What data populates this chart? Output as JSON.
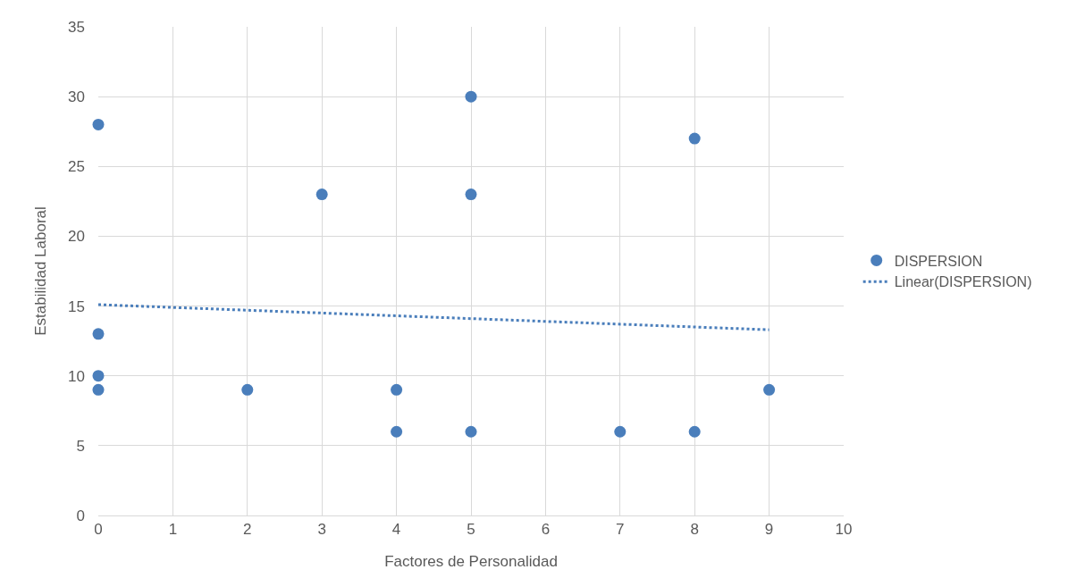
{
  "chart_data": {
    "type": "scatter",
    "xlabel": "Factores de Personalidad",
    "ylabel": "Estabilidad Laboral",
    "series": [
      {
        "name": "DISPERSION",
        "color": "#4a7ebb",
        "marker": "circle",
        "x": [
          0,
          0,
          0,
          0,
          2,
          3,
          4,
          4,
          5,
          5,
          5,
          7,
          8,
          8,
          9
        ],
        "values": [
          28,
          13,
          10,
          9,
          9,
          23,
          9,
          6,
          30,
          23,
          6,
          6,
          27,
          6,
          9
        ]
      },
      {
        "name": "Linear(DISPERSION)",
        "type": "line",
        "color": "#4a7ebb",
        "marker": "none",
        "line_style": "dotted",
        "x": [
          0,
          9
        ],
        "values": [
          15.1,
          13.3
        ]
      }
    ],
    "xlim": [
      0,
      10
    ],
    "xticks": [
      0,
      1,
      2,
      3,
      4,
      5,
      6,
      7,
      8,
      9,
      10
    ],
    "ylim": [
      0,
      35
    ],
    "yticks": [
      0,
      5,
      10,
      15,
      20,
      25,
      30,
      35
    ],
    "grid": true,
    "legend": "right"
  }
}
